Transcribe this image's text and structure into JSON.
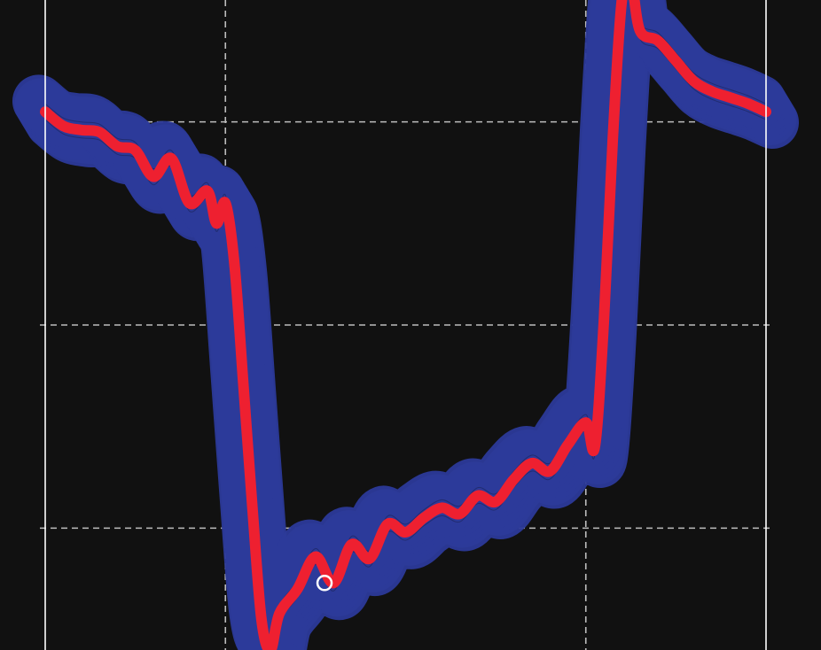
{
  "colors": {
    "background": "#111111",
    "band": "#2c3a9a",
    "band_stroke": "#1c2660",
    "trace": "#ee2030",
    "grid": "#bdbdbd",
    "border": "#ffffff",
    "cursor": "#ffffff"
  },
  "chart_data": {
    "type": "line",
    "title": "",
    "xlabel": "",
    "ylabel": "",
    "grid": true,
    "xlim": [
      0,
      4
    ],
    "ylim": [
      -0.6,
      2.6
    ],
    "x_gridlines": [
      1,
      3
    ],
    "y_gridlines": [
      0,
      1,
      2
    ],
    "series": [
      {
        "x": [
          0.0,
          0.1,
          0.2,
          0.3,
          0.4,
          0.5,
          0.6,
          0.7,
          0.8,
          0.9,
          0.95,
          1.0,
          1.05,
          1.1,
          1.15,
          1.2,
          1.25,
          1.3,
          1.4,
          1.5,
          1.6,
          1.7,
          1.8,
          1.9,
          2.0,
          2.1,
          2.2,
          2.3,
          2.4,
          2.5,
          2.6,
          2.7,
          2.8,
          2.9,
          3.0,
          3.05,
          3.1,
          3.15,
          3.2,
          3.25,
          3.3,
          3.4,
          3.5,
          3.6,
          3.7,
          3.8,
          3.9,
          4.0
        ],
        "y": [
          2.05,
          1.98,
          1.96,
          1.95,
          1.88,
          1.86,
          1.73,
          1.82,
          1.6,
          1.66,
          1.5,
          1.6,
          1.3,
          0.7,
          0.1,
          -0.45,
          -0.6,
          -0.42,
          -0.3,
          -0.14,
          -0.27,
          -0.08,
          -0.15,
          0.02,
          -0.02,
          0.05,
          0.1,
          0.07,
          0.16,
          0.13,
          0.24,
          0.32,
          0.28,
          0.41,
          0.52,
          0.4,
          1.02,
          1.92,
          2.6,
          2.7,
          2.45,
          2.4,
          2.3,
          2.2,
          2.15,
          2.12,
          2.09,
          2.05
        ]
      }
    ],
    "band": {
      "half_width": 0.13,
      "shadow_copies": 6
    },
    "cursor_point": {
      "x": 1.55,
      "y": -0.27
    }
  }
}
